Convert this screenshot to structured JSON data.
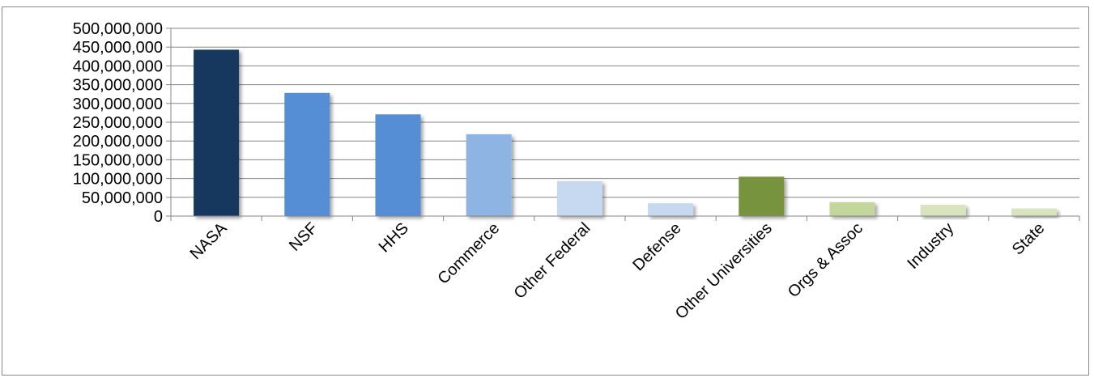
{
  "chart_data": {
    "type": "bar",
    "title": "",
    "xlabel": "",
    "ylabel": "",
    "categories": [
      "NASA",
      "NSF",
      "HHS",
      "Commerce",
      "Other Federal",
      "Defense",
      "Other Universities",
      "Orgs & Assoc",
      "Industry",
      "State"
    ],
    "values": [
      443000000,
      328000000,
      271000000,
      218000000,
      93000000,
      34000000,
      105000000,
      37000000,
      30000000,
      20000000
    ],
    "colors": [
      "#17375E",
      "#558ED5",
      "#558ED5",
      "#8EB4E3",
      "#C6D9F1",
      "#C6D9F1",
      "#77933C",
      "#C3D69B",
      "#D7E4BD",
      "#D7E4BD"
    ],
    "ylim": [
      0,
      500000000
    ],
    "yticks": [
      0,
      50000000,
      100000000,
      150000000,
      200000000,
      250000000,
      300000000,
      350000000,
      400000000,
      450000000,
      500000000
    ],
    "ytick_labels": [
      "0",
      "50,000,000",
      "100,000,000",
      "150,000,000",
      "200,000,000",
      "250,000,000",
      "300,000,000",
      "350,000,000",
      "400,000,000",
      "450,000,000",
      "500,000,000"
    ],
    "grid": true,
    "legend": "none"
  }
}
